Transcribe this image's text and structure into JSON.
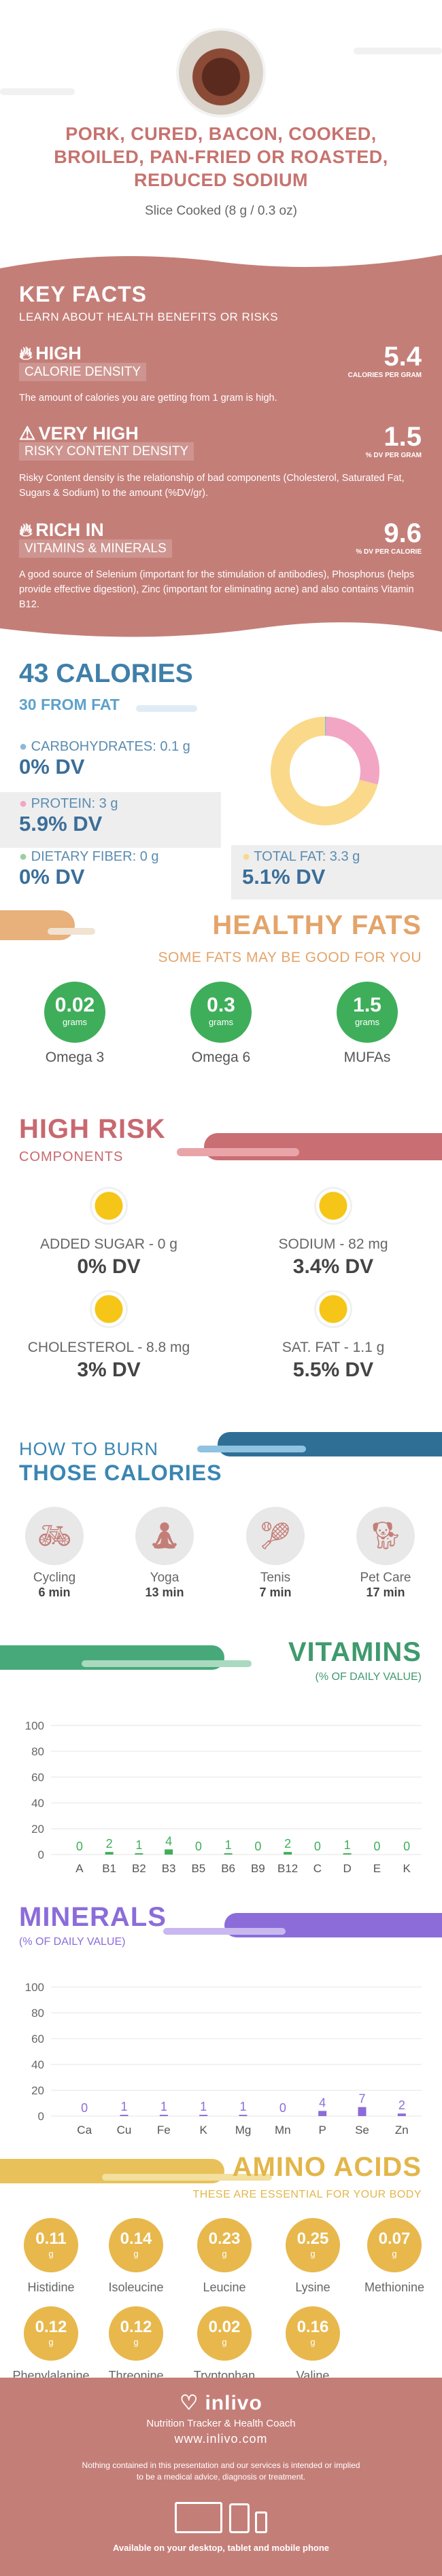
{
  "title": "PORK, CURED, BACON, COOKED, BROILED, PAN-FRIED OR ROASTED, REDUCED SODIUM",
  "serving": "Slice Cooked (8 g / 0.3 oz)",
  "key_facts": {
    "heading": "KEY FACTS",
    "subheading": "LEARN ABOUT HEALTH BENEFITS OR RISKS",
    "items": [
      {
        "level": "HIGH",
        "label": "CALORIE DENSITY",
        "value": "5.4",
        "unit": "CALORIES PER GRAM",
        "desc": "The amount of calories you are getting from 1 gram is high.",
        "icon": "flame-icon"
      },
      {
        "level": "VERY HIGH",
        "label": "RISKY CONTENT DENSITY",
        "value": "1.5",
        "unit": "% DV PER GRAM",
        "desc": "Risky Content density is the relationship of bad components (Cholesterol, Saturated Fat, Sugars & Sodium) to the amount (%DV/gr).",
        "icon": "warning-icon"
      },
      {
        "level": "RICH  IN",
        "label": "VITAMINS & MINERALS",
        "value": "9.6",
        "unit": "% DV PER CALORIE",
        "desc": "A good source of Selenium (important for the stimulation of antibodies), Phosphorus (helps provide effective digestion), Zinc (important for eliminating acne) and also contains Vitamin B12.",
        "icon": "flame-icon"
      }
    ]
  },
  "calories": {
    "total": "43 CALORIES",
    "from_fat": "30 FROM FAT",
    "carbs_label": "CARBOHYDRATES: 0.1 g",
    "carbs_dv": "0% DV",
    "protein_label": "PROTEIN: 3 g",
    "protein_dv": "5.9% DV",
    "fiber_label": "DIETARY FIBER: 0 g",
    "fiber_dv": "0% DV",
    "fat_label": "TOTAL FAT: 3.3 g",
    "fat_dv": "5.1% DV"
  },
  "chart_data": [
    {
      "type": "pie",
      "categories": [
        "Carbohydrates",
        "Protein",
        "Fat"
      ],
      "values": [
        0.4,
        28.6,
        71.0
      ],
      "colors": [
        "#8fb8d8",
        "#f2a6c4",
        "#fad98a"
      ]
    },
    {
      "type": "bar",
      "title": "VITAMINS",
      "subtitle": "(% OF DAILY VALUE)",
      "categories": [
        "A",
        "B1",
        "B2",
        "B3",
        "B5",
        "B6",
        "B9",
        "B12",
        "C",
        "D",
        "E",
        "K"
      ],
      "values": [
        0,
        2,
        1,
        4,
        0,
        1,
        0,
        2,
        0,
        1,
        0,
        0
      ],
      "ylim": [
        0,
        100
      ],
      "yticks": [
        0,
        20,
        40,
        60,
        80,
        100
      ],
      "color": "#3fae5a"
    },
    {
      "type": "bar",
      "title": "MINERALS",
      "subtitle": "(% OF DAILY VALUE)",
      "categories": [
        "Ca",
        "Cu",
        "Fe",
        "K",
        "Mg",
        "Mn",
        "P",
        "Se",
        "Zn"
      ],
      "values": [
        0,
        1,
        1,
        1,
        1,
        0,
        4,
        7,
        2
      ],
      "ylim": [
        0,
        100
      ],
      "yticks": [
        0,
        20,
        40,
        60,
        80,
        100
      ],
      "color": "#8c6cd9"
    }
  ],
  "healthy_fats": {
    "title": "HEALTHY FATS",
    "subtitle": "SOME FATS MAY BE GOOD FOR YOU",
    "unit": "grams",
    "items": [
      {
        "value": "0.02",
        "label": "Omega 3"
      },
      {
        "value": "0.3",
        "label": "Omega 6"
      },
      {
        "value": "1.5",
        "label": "MUFAs"
      }
    ]
  },
  "high_risk": {
    "title": "HIGH RISK",
    "subtitle": "COMPONENTS",
    "items": [
      {
        "label": "ADDED SUGAR - 0 g",
        "dv": "0% DV"
      },
      {
        "label": "SODIUM - 82 mg",
        "dv": "3.4% DV"
      },
      {
        "label": "CHOLESTEROL - 8.8 mg",
        "dv": "3% DV"
      },
      {
        "label": "SAT. FAT - 1.1 g",
        "dv": "5.5% DV"
      }
    ]
  },
  "burn": {
    "line1": "HOW TO BURN",
    "line2": "THOSE CALORIES",
    "items": [
      {
        "name": "Cycling",
        "time": "6 min",
        "icon": "cycling-icon"
      },
      {
        "name": "Yoga",
        "time": "13 min",
        "icon": "yoga-icon"
      },
      {
        "name": "Tenis",
        "time": "7 min",
        "icon": "tennis-icon"
      },
      {
        "name": "Pet Care",
        "time": "17 min",
        "icon": "pet-care-icon"
      }
    ]
  },
  "amino": {
    "title": "AMINO ACIDS",
    "subtitle": "THESE ARE ESSENTIAL FOR YOUR BODY",
    "unit": "g",
    "items": [
      {
        "value": "0.11",
        "label": "Histidine"
      },
      {
        "value": "0.14",
        "label": "Isoleucine"
      },
      {
        "value": "0.23",
        "label": "Leucine"
      },
      {
        "value": "0.25",
        "label": "Lysine"
      },
      {
        "value": "0.07",
        "label": "Methionine"
      },
      {
        "value": "0.12",
        "label": "Phenylalanine"
      },
      {
        "value": "0.12",
        "label": "Threonine"
      },
      {
        "value": "0.02",
        "label": "Tryptophan"
      },
      {
        "value": "0.16",
        "label": "Valine"
      }
    ]
  },
  "footer": {
    "brand": "inlivo",
    "tagline": "Nutrition Tracker & Health Coach",
    "url": "www.inlivo.com",
    "disclaimer": "Nothing contained in this presentation and our services is intended or implied to be a medical advice, diagnosis or treatment.",
    "available": "Available on your desktop, tablet and mobile phone"
  }
}
